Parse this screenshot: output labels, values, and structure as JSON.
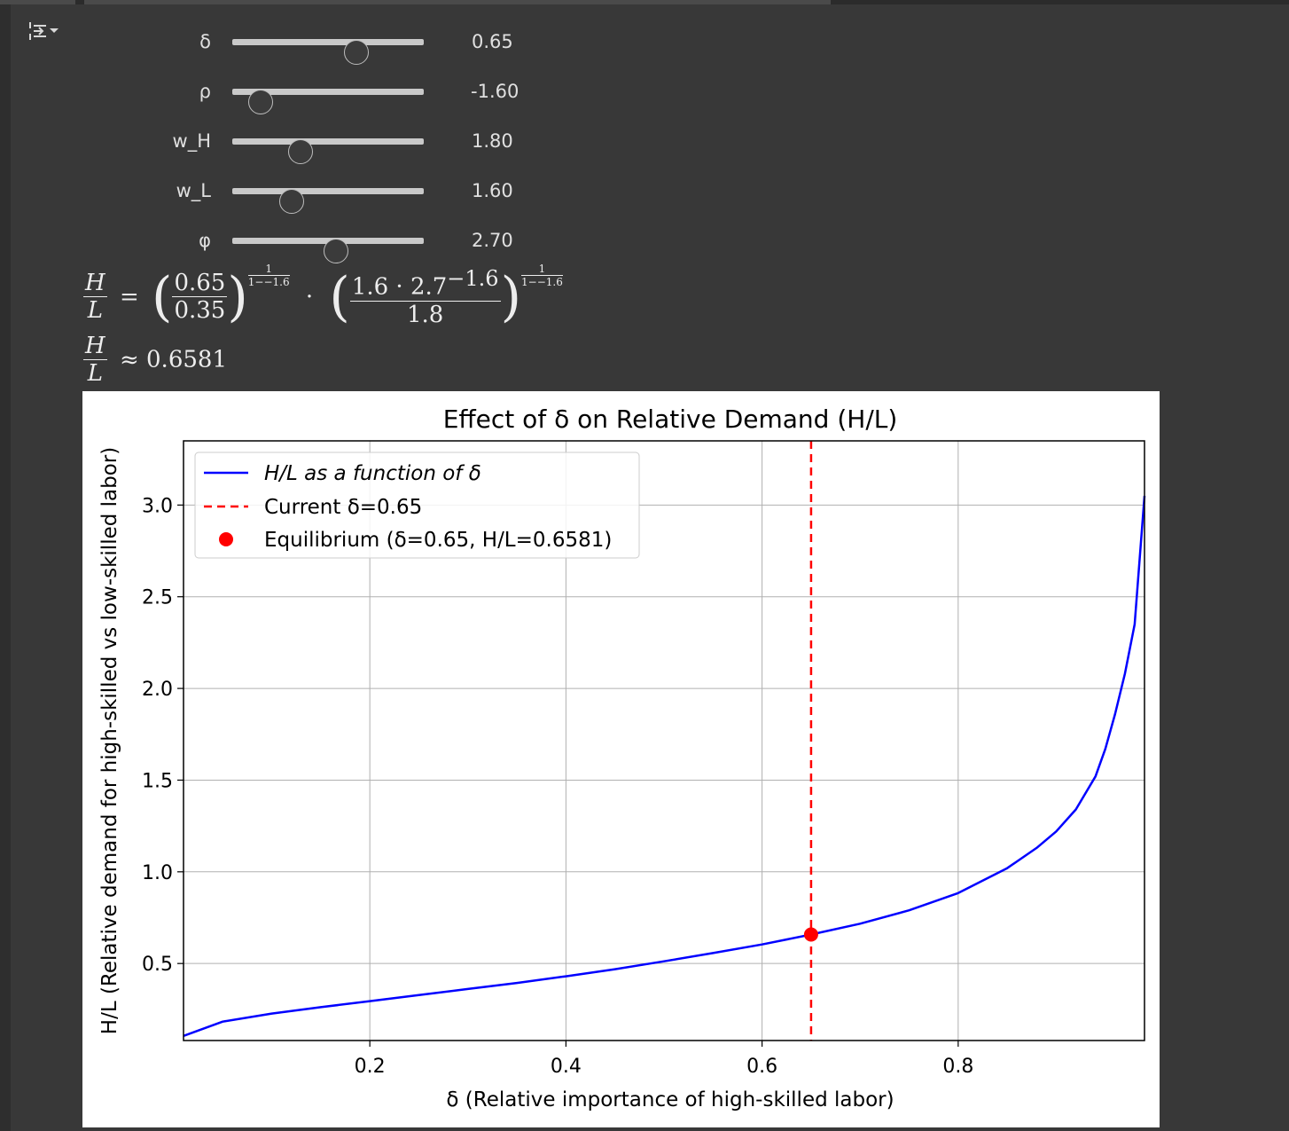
{
  "sliders": [
    {
      "label": "δ",
      "value": "0.65",
      "fraction": 0.65
    },
    {
      "label": "ρ",
      "value": "-1.60",
      "fraction": 0.147
    },
    {
      "label": "w_H",
      "value": "1.80",
      "fraction": 0.355
    },
    {
      "label": "w_L",
      "value": "1.60",
      "fraction": 0.31
    },
    {
      "label": "φ",
      "value": "2.70",
      "fraction": 0.54
    }
  ],
  "equation": {
    "lhs_num": "H",
    "lhs_den": "L",
    "eq": "=",
    "f1_num": "0.65",
    "f1_den": "0.35",
    "exp_num": "1",
    "exp_den": "1−−1.6",
    "dot": "·",
    "f2_num": "1.6 · 2.7",
    "f2_num_exp": "−1.6",
    "f2_den": "1.8",
    "approx_sym": "≈",
    "approx_val": "0.6581"
  },
  "chart_data": {
    "type": "line",
    "title": "Effect of δ on Relative Demand (H/L)",
    "xlabel": "δ (Relative importance of high-skilled labor)",
    "ylabel": "H/L (Relative demand for high-skilled vs low-skilled labor)",
    "xlim": [
      0.01,
      0.99
    ],
    "ylim": [
      0.08,
      3.35
    ],
    "xticks": [
      "0.2",
      "0.4",
      "0.6",
      "0.8"
    ],
    "xtick_values": [
      0.2,
      0.4,
      0.6,
      0.8
    ],
    "yticks": [
      "0.5",
      "1.0",
      "1.5",
      "2.0",
      "2.5",
      "3.0"
    ],
    "ytick_values": [
      0.5,
      1.0,
      1.5,
      2.0,
      2.5,
      3.0
    ],
    "grid": true,
    "legend_position": "upper-left",
    "series": [
      {
        "name": "H/L as a function of δ",
        "color": "#0000ff",
        "style": "solid",
        "x": [
          0.01,
          0.05,
          0.1,
          0.15,
          0.2,
          0.25,
          0.3,
          0.35,
          0.4,
          0.45,
          0.5,
          0.55,
          0.6,
          0.65,
          0.7,
          0.75,
          0.8,
          0.85,
          0.88,
          0.9,
          0.92,
          0.94,
          0.95,
          0.96,
          0.97,
          0.98,
          0.99
        ],
        "y": [
          0.105,
          0.183,
          0.227,
          0.262,
          0.295,
          0.328,
          0.361,
          0.394,
          0.43,
          0.469,
          0.512,
          0.557,
          0.604,
          0.658,
          0.717,
          0.79,
          0.884,
          1.02,
          1.13,
          1.22,
          1.34,
          1.52,
          1.67,
          1.86,
          2.08,
          2.35,
          3.05
        ]
      }
    ],
    "vline": {
      "name": "Current δ=0.65",
      "x": 0.65,
      "color": "#ff0000",
      "style": "dashed"
    },
    "point": {
      "name": "Equilibrium (δ=0.65, H/L=0.6581)",
      "x": 0.65,
      "y": 0.6581,
      "color": "#ff0000"
    }
  }
}
